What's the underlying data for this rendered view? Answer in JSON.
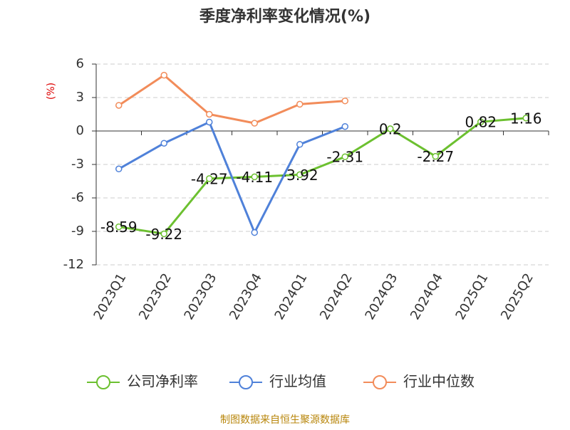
{
  "chart_data": {
    "type": "line",
    "title": "季度净利率变化情况(%)",
    "y_label": "(%)",
    "categories": [
      "2023Q1",
      "2023Q2",
      "2023Q3",
      "2023Q4",
      "2024Q1",
      "2024Q2",
      "2024Q3",
      "2024Q4",
      "2025Q1",
      "2025Q2"
    ],
    "series": [
      {
        "name": "公司净利率",
        "color": "#6cc030",
        "values": [
          -8.59,
          -9.22,
          -4.27,
          -4.11,
          -3.92,
          -2.31,
          0.2,
          -2.27,
          0.82,
          1.16
        ],
        "show_labels": true
      },
      {
        "name": "行业均值",
        "color": "#4f81d9",
        "values": [
          -3.4,
          -1.1,
          0.8,
          -9.1,
          -1.2,
          0.4,
          null,
          null,
          null,
          null
        ]
      },
      {
        "name": "行业中位数",
        "color": "#f28c5a",
        "values": [
          2.3,
          5.0,
          1.5,
          0.7,
          2.4,
          2.7,
          null,
          null,
          null,
          null
        ]
      }
    ],
    "ylim": [
      -12,
      6
    ],
    "yticks": [
      -12,
      -9,
      -6,
      -3,
      0,
      3,
      6
    ],
    "grid": true,
    "source": "制图数据来自恒生聚源数据库"
  }
}
